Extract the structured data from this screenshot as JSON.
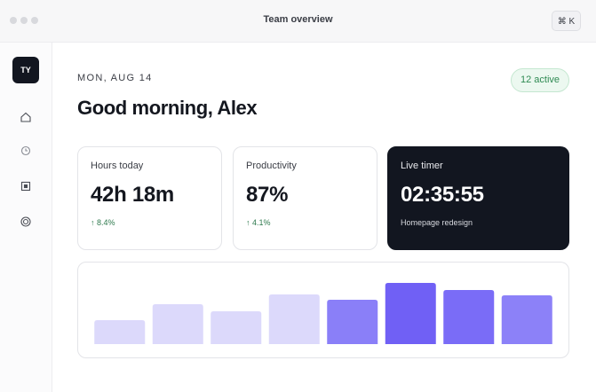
{
  "window": {
    "title": "Team overview",
    "shortcut": "⌘ K"
  },
  "sidebar": {
    "avatar": "TY"
  },
  "header": {
    "date": "MON, AUG 14",
    "greeting": "Good morning, Alex",
    "status": "12 active"
  },
  "cards": [
    {
      "label": "Hours today",
      "value": "42h 18m",
      "delta": "↑ 8.4%"
    },
    {
      "label": "Productivity",
      "value": "87%",
      "delta": "↑ 4.1%"
    },
    {
      "label": "Live timer",
      "value": "02:35:55",
      "note": "Homepage redesign"
    }
  ],
  "chart": {
    "type": "bar",
    "values": [
      27,
      45,
      37,
      56,
      50,
      69,
      61,
      55
    ],
    "colors": [
      "#dcd9fb",
      "#dcd9fb",
      "#dcd9fb",
      "#dcd9fb",
      "#8a7ff8",
      "#7060f5",
      "#7a6cf7",
      "#8c81f8"
    ],
    "ylim": [
      0,
      80
    ]
  }
}
